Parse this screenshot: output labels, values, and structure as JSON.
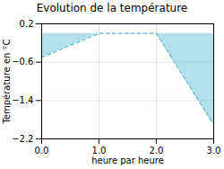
{
  "chart_data": {
    "type": "area",
    "title": "Evolution de la température",
    "xlabel": "heure par heure",
    "ylabel": "Température en °C",
    "x": [
      0,
      1,
      2,
      3
    ],
    "values": [
      -0.5,
      0.0,
      0.0,
      -1.9
    ],
    "color": "#5bb8d4",
    "line_style": "dashed",
    "xlim": [
      0,
      3
    ],
    "ylim": [
      -2.2,
      0.2
    ],
    "xticks": [
      0,
      1,
      2,
      3
    ],
    "yticks": [
      0.2,
      -0.6,
      -1.4,
      -2.2
    ],
    "grid": true
  }
}
